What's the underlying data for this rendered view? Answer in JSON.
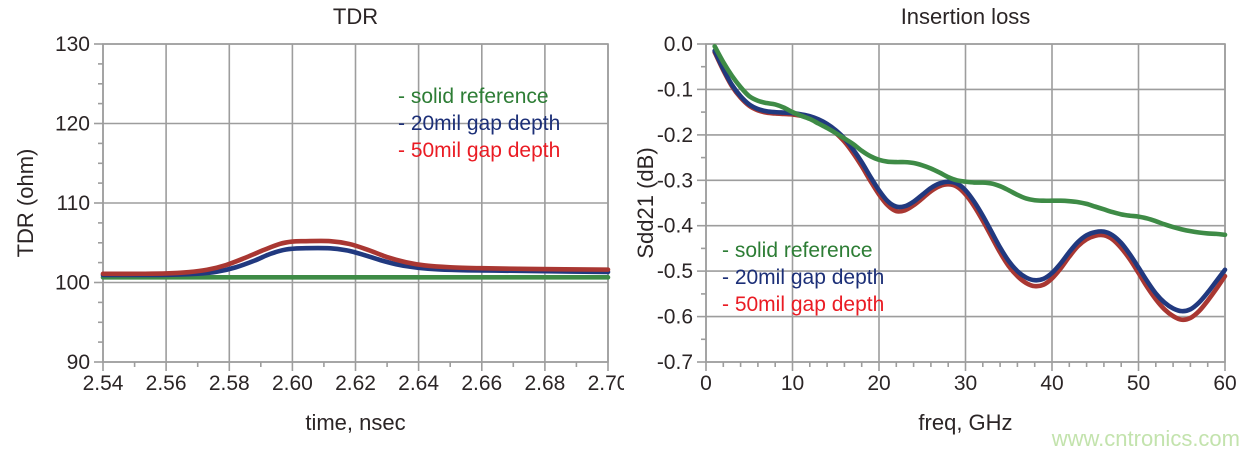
{
  "watermark": {
    "text": "www.cntronics.com",
    "color": "#c3e3ad"
  },
  "styles": {
    "background": "#ffffff",
    "grid_color": "#9d9d9d",
    "tick_label_color": "#2b2526",
    "title_color": "#2b2526"
  },
  "series_meta": [
    {
      "key": "solid_reference",
      "label": "- solid reference",
      "curve_color": "#3e8b46",
      "legend_color": "#2d7d35"
    },
    {
      "key": "gap20",
      "label": "- 20mil gap depth",
      "curve_color": "#21397f",
      "legend_color": "#1c2f77"
    },
    {
      "key": "gap50",
      "label": "- 50mil gap depth",
      "curve_color": "#a93732",
      "legend_color": "#ea1c24"
    }
  ],
  "chart_data": [
    {
      "type": "line",
      "title": "TDR",
      "xlabel": "time, nsec",
      "ylabel": "TDR (ohm)",
      "xlim": [
        2.54,
        2.7
      ],
      "ylim": [
        90,
        130
      ],
      "xticks": [
        2.54,
        2.56,
        2.58,
        2.6,
        2.62,
        2.64,
        2.66,
        2.68,
        2.7
      ],
      "xtick_labels": [
        "2.54",
        "2.56",
        "2.58",
        "2.60",
        "2.62",
        "2.64",
        "2.66",
        "2.68",
        "2.70"
      ],
      "yticks": [
        90,
        100,
        110,
        120,
        130
      ],
      "ytick_labels": [
        "90",
        "100",
        "110",
        "120",
        "130"
      ],
      "x_minor_divs": 2,
      "y_minor_divs": 4,
      "grid": true,
      "legend_position": "top-right",
      "series": [
        {
          "key": "solid_reference",
          "name": "solid reference",
          "points": [
            [
              2.54,
              100.65
            ],
            [
              2.62,
              100.65
            ],
            [
              2.7,
              100.65
            ]
          ]
        },
        {
          "key": "gap20",
          "name": "20mil gap depth",
          "points": [
            [
              2.54,
              100.95
            ],
            [
              2.555,
              100.95
            ],
            [
              2.562,
              100.98
            ],
            [
              2.57,
              101.1
            ],
            [
              2.576,
              101.35
            ],
            [
              2.582,
              101.9
            ],
            [
              2.588,
              102.75
            ],
            [
              2.593,
              103.6
            ],
            [
              2.598,
              104.15
            ],
            [
              2.603,
              104.3
            ],
            [
              2.612,
              104.3
            ],
            [
              2.617,
              104.05
            ],
            [
              2.622,
              103.55
            ],
            [
              2.628,
              102.8
            ],
            [
              2.634,
              102.2
            ],
            [
              2.64,
              101.85
            ],
            [
              2.646,
              101.65
            ],
            [
              2.654,
              101.55
            ],
            [
              2.664,
              101.5
            ],
            [
              2.68,
              101.42
            ],
            [
              2.7,
              101.32
            ]
          ]
        },
        {
          "key": "gap50",
          "name": "50mil gap depth",
          "points": [
            [
              2.54,
              101.1
            ],
            [
              2.552,
              101.1
            ],
            [
              2.56,
              101.14
            ],
            [
              2.567,
              101.3
            ],
            [
              2.573,
              101.6
            ],
            [
              2.579,
              102.2
            ],
            [
              2.585,
              103.1
            ],
            [
              2.591,
              104.1
            ],
            [
              2.596,
              104.85
            ],
            [
              2.6,
              105.15
            ],
            [
              2.604,
              105.2
            ],
            [
              2.612,
              105.2
            ],
            [
              2.618,
              104.85
            ],
            [
              2.624,
              104.1
            ],
            [
              2.63,
              103.2
            ],
            [
              2.636,
              102.55
            ],
            [
              2.642,
              102.15
            ],
            [
              2.65,
              101.92
            ],
            [
              2.66,
              101.8
            ],
            [
              2.675,
              101.7
            ],
            [
              2.7,
              101.62
            ]
          ]
        }
      ]
    },
    {
      "type": "line",
      "title": "Insertion loss",
      "xlabel": "freq, GHz",
      "ylabel": "Sdd21 (dB)",
      "xlim": [
        0,
        60
      ],
      "ylim": [
        -0.7,
        0.0
      ],
      "xticks": [
        0,
        10,
        20,
        30,
        40,
        50,
        60
      ],
      "xtick_labels": [
        "0",
        "10",
        "20",
        "30",
        "40",
        "50",
        "60"
      ],
      "yticks": [
        -0.7,
        -0.6,
        -0.5,
        -0.4,
        -0.3,
        -0.2,
        -0.1,
        0.0
      ],
      "ytick_labels": [
        "-0.7",
        "-0.6",
        "-0.5",
        "-0.4",
        "-0.3",
        "-0.2",
        "-0.1",
        "0.0"
      ],
      "x_minor_divs": 5,
      "y_minor_divs": 2,
      "grid": true,
      "legend_position": "bottom-left",
      "series": [
        {
          "key": "gap50",
          "name": "50mil gap depth",
          "points": [
            [
              1,
              -0.018
            ],
            [
              2,
              -0.058
            ],
            [
              3,
              -0.093
            ],
            [
              4,
              -0.118
            ],
            [
              5,
              -0.136
            ],
            [
              6,
              -0.146
            ],
            [
              7,
              -0.151
            ],
            [
              8,
              -0.153
            ],
            [
              9,
              -0.154
            ],
            [
              10,
              -0.155
            ],
            [
              11,
              -0.158
            ],
            [
              12,
              -0.162
            ],
            [
              13,
              -0.17
            ],
            [
              14,
              -0.181
            ],
            [
              15,
              -0.196
            ],
            [
              16,
              -0.215
            ],
            [
              17,
              -0.24
            ],
            [
              18,
              -0.269
            ],
            [
              19,
              -0.301
            ],
            [
              20,
              -0.331
            ],
            [
              21,
              -0.355
            ],
            [
              22,
              -0.368
            ],
            [
              23,
              -0.366
            ],
            [
              24,
              -0.355
            ],
            [
              25,
              -0.34
            ],
            [
              26,
              -0.324
            ],
            [
              27,
              -0.313
            ],
            [
              28,
              -0.309
            ],
            [
              29,
              -0.314
            ],
            [
              30,
              -0.331
            ],
            [
              31,
              -0.357
            ],
            [
              32,
              -0.389
            ],
            [
              33,
              -0.424
            ],
            [
              34,
              -0.459
            ],
            [
              35,
              -0.489
            ],
            [
              36,
              -0.511
            ],
            [
              37,
              -0.526
            ],
            [
              38,
              -0.533
            ],
            [
              39,
              -0.53
            ],
            [
              40,
              -0.516
            ],
            [
              41,
              -0.494
            ],
            [
              42,
              -0.468
            ],
            [
              43,
              -0.445
            ],
            [
              44,
              -0.43
            ],
            [
              45,
              -0.422
            ],
            [
              46,
              -0.421
            ],
            [
              47,
              -0.43
            ],
            [
              48,
              -0.449
            ],
            [
              49,
              -0.474
            ],
            [
              50,
              -0.504
            ],
            [
              51,
              -0.535
            ],
            [
              52,
              -0.562
            ],
            [
              53,
              -0.584
            ],
            [
              54,
              -0.599
            ],
            [
              55,
              -0.607
            ],
            [
              56,
              -0.603
            ],
            [
              57,
              -0.588
            ],
            [
              58,
              -0.565
            ],
            [
              59,
              -0.539
            ],
            [
              60,
              -0.511
            ]
          ]
        },
        {
          "key": "gap20",
          "name": "20mil gap depth",
          "points": [
            [
              1,
              -0.015
            ],
            [
              2,
              -0.055
            ],
            [
              3,
              -0.09
            ],
            [
              4,
              -0.115
            ],
            [
              5,
              -0.133
            ],
            [
              6,
              -0.143
            ],
            [
              7,
              -0.148
            ],
            [
              8,
              -0.15
            ],
            [
              9,
              -0.151
            ],
            [
              10,
              -0.152
            ],
            [
              11,
              -0.155
            ],
            [
              12,
              -0.159
            ],
            [
              13,
              -0.166
            ],
            [
              14,
              -0.176
            ],
            [
              15,
              -0.19
            ],
            [
              16,
              -0.208
            ],
            [
              17,
              -0.232
            ],
            [
              18,
              -0.26
            ],
            [
              19,
              -0.292
            ],
            [
              20,
              -0.322
            ],
            [
              21,
              -0.346
            ],
            [
              22,
              -0.358
            ],
            [
              23,
              -0.357
            ],
            [
              24,
              -0.347
            ],
            [
              25,
              -0.332
            ],
            [
              26,
              -0.317
            ],
            [
              27,
              -0.307
            ],
            [
              28,
              -0.303
            ],
            [
              29,
              -0.307
            ],
            [
              30,
              -0.322
            ],
            [
              31,
              -0.347
            ],
            [
              32,
              -0.378
            ],
            [
              33,
              -0.413
            ],
            [
              34,
              -0.448
            ],
            [
              35,
              -0.478
            ],
            [
              36,
              -0.5
            ],
            [
              37,
              -0.514
            ],
            [
              38,
              -0.52
            ],
            [
              39,
              -0.517
            ],
            [
              40,
              -0.504
            ],
            [
              41,
              -0.483
            ],
            [
              42,
              -0.458
            ],
            [
              43,
              -0.436
            ],
            [
              44,
              -0.421
            ],
            [
              45,
              -0.414
            ],
            [
              46,
              -0.413
            ],
            [
              47,
              -0.421
            ],
            [
              48,
              -0.438
            ],
            [
              49,
              -0.463
            ],
            [
              50,
              -0.492
            ],
            [
              51,
              -0.522
            ],
            [
              52,
              -0.549
            ],
            [
              53,
              -0.569
            ],
            [
              54,
              -0.582
            ],
            [
              55,
              -0.588
            ],
            [
              56,
              -0.584
            ],
            [
              57,
              -0.569
            ],
            [
              58,
              -0.547
            ],
            [
              59,
              -0.522
            ],
            [
              60,
              -0.497
            ]
          ]
        },
        {
          "key": "solid_reference",
          "name": "solid reference",
          "points": [
            [
              1,
              -0.005
            ],
            [
              2,
              -0.04
            ],
            [
              3,
              -0.07
            ],
            [
              4,
              -0.095
            ],
            [
              5,
              -0.115
            ],
            [
              6,
              -0.125
            ],
            [
              7,
              -0.13
            ],
            [
              8,
              -0.133
            ],
            [
              9,
              -0.14
            ],
            [
              10,
              -0.15
            ],
            [
              11,
              -0.158
            ],
            [
              12,
              -0.165
            ],
            [
              13,
              -0.175
            ],
            [
              14,
              -0.185
            ],
            [
              15,
              -0.196
            ],
            [
              16,
              -0.208
            ],
            [
              17,
              -0.22
            ],
            [
              18,
              -0.235
            ],
            [
              19,
              -0.247
            ],
            [
              20,
              -0.255
            ],
            [
              21,
              -0.259
            ],
            [
              22,
              -0.26
            ],
            [
              23,
              -0.26
            ],
            [
              24,
              -0.262
            ],
            [
              25,
              -0.267
            ],
            [
              26,
              -0.274
            ],
            [
              27,
              -0.283
            ],
            [
              28,
              -0.293
            ],
            [
              29,
              -0.3
            ],
            [
              30,
              -0.303
            ],
            [
              31,
              -0.305
            ],
            [
              32,
              -0.305
            ],
            [
              33,
              -0.307
            ],
            [
              34,
              -0.313
            ],
            [
              35,
              -0.322
            ],
            [
              36,
              -0.332
            ],
            [
              37,
              -0.34
            ],
            [
              38,
              -0.344
            ],
            [
              39,
              -0.345
            ],
            [
              40,
              -0.345
            ],
            [
              41,
              -0.345
            ],
            [
              42,
              -0.346
            ],
            [
              43,
              -0.348
            ],
            [
              44,
              -0.352
            ],
            [
              45,
              -0.358
            ],
            [
              46,
              -0.364
            ],
            [
              47,
              -0.37
            ],
            [
              48,
              -0.375
            ],
            [
              49,
              -0.378
            ],
            [
              50,
              -0.38
            ],
            [
              51,
              -0.384
            ],
            [
              52,
              -0.39
            ],
            [
              53,
              -0.397
            ],
            [
              54,
              -0.403
            ],
            [
              55,
              -0.408
            ],
            [
              56,
              -0.412
            ],
            [
              57,
              -0.415
            ],
            [
              58,
              -0.417
            ],
            [
              59,
              -0.418
            ],
            [
              60,
              -0.42
            ]
          ]
        }
      ]
    }
  ]
}
